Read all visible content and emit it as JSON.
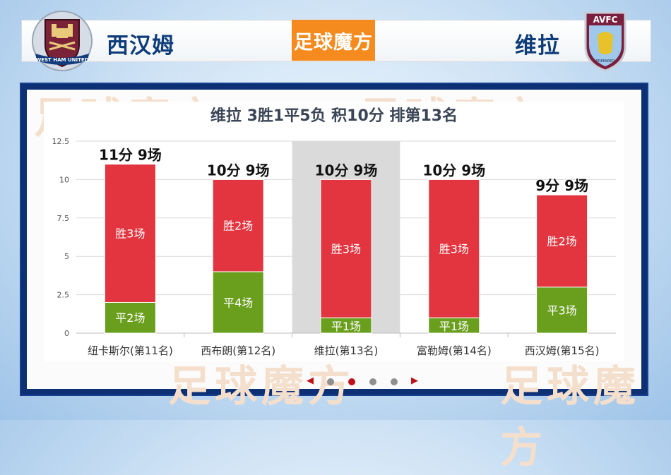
{
  "header": {
    "home_team": "西汉姆",
    "away_team": "维拉",
    "logo_text": "足球魔方",
    "home_crest_text": "WEST HAM UNITED",
    "away_crest_text": "AVFC",
    "away_crest_motto": "PREPARED"
  },
  "watermark_text": "足球魔方",
  "chart_data": {
    "type": "bar",
    "stacked": true,
    "title": "维拉 3胜1平5负 积10分 排第13名",
    "categories": [
      "纽卡斯尔(第11名)",
      "西布朗(第12名)",
      "维拉(第13名)",
      "富勒姆(第14名)",
      "西汉姆(第15名)"
    ],
    "highlight_index": 2,
    "series": [
      {
        "key": "draw",
        "values": [
          2,
          4,
          1,
          1,
          3
        ],
        "labels": [
          "平2场",
          "平4场",
          "平1场",
          "平1场",
          "平3场"
        ],
        "color": "#6a9f1e"
      },
      {
        "key": "win",
        "values": [
          9,
          6,
          9,
          9,
          6
        ],
        "labels": [
          "胜3场",
          "胜2场",
          "胜3场",
          "胜3场",
          "胜2场"
        ],
        "color": "#e2353f"
      }
    ],
    "totals_labels": [
      "11分 9场",
      "10分 9场",
      "10分 9场",
      "10分 9场",
      "9分 9场"
    ],
    "yticks": [
      "0",
      "2.5",
      "5",
      "7.5",
      "10",
      "12.5"
    ],
    "ylim": [
      0,
      12.5
    ],
    "grid": true
  },
  "pager": {
    "prev_icon": "◀",
    "next_icon": "▶",
    "count": 4,
    "active": 1
  }
}
